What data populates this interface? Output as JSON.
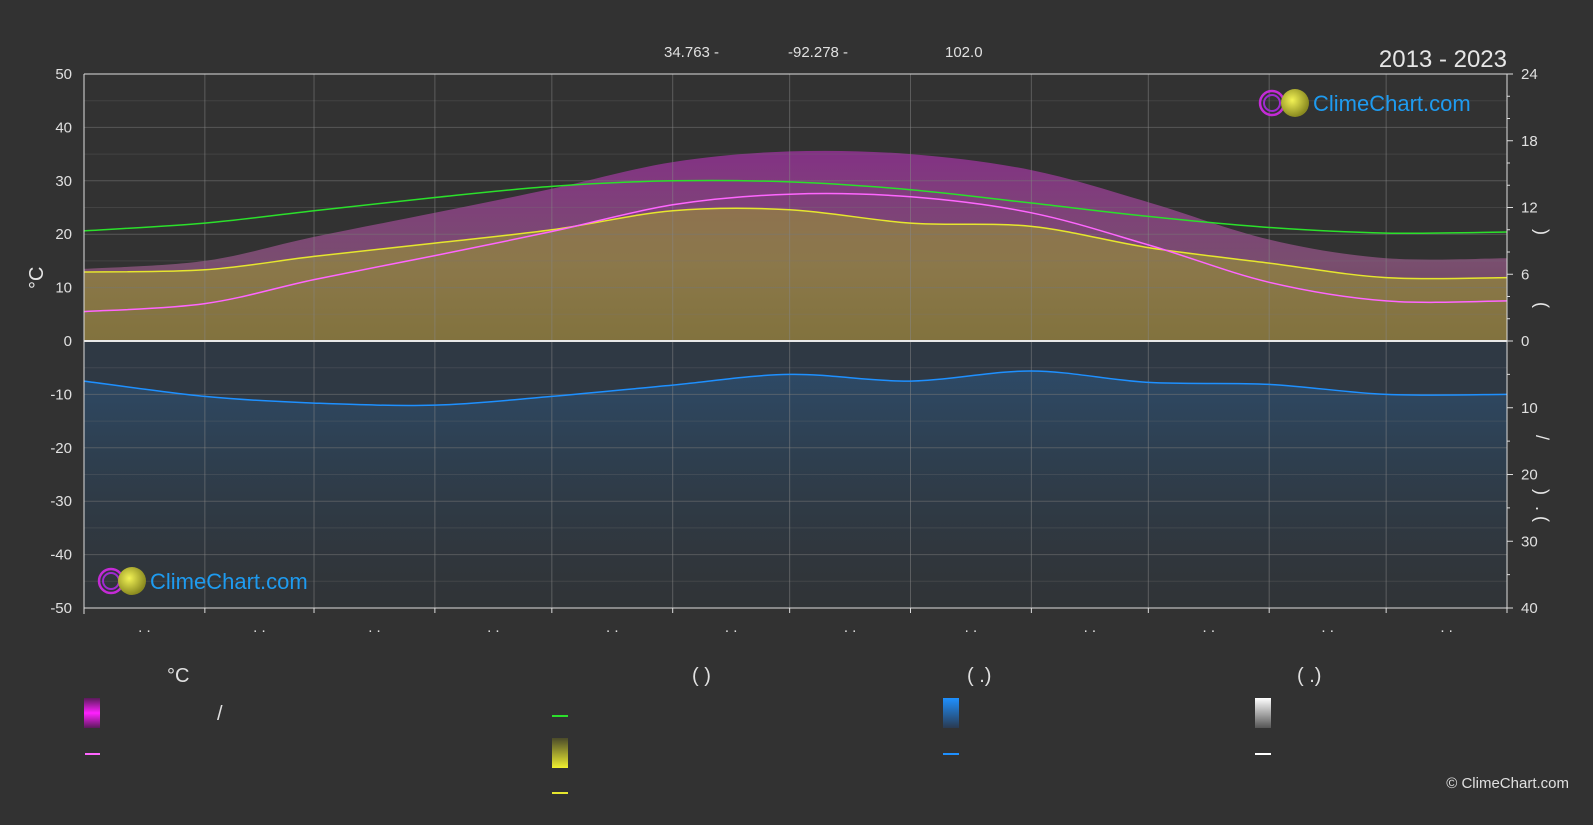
{
  "header": {
    "latitude": "34.763 -",
    "longitude": "-92.278 -",
    "elevation": "102.0",
    "period": "2013 - 2023"
  },
  "brand": {
    "name": "ClimeChart.com",
    "copyright": "© ClimeChart.com"
  },
  "colors": {
    "background": "#323232",
    "daylight": "#2be02b",
    "sunshine": "#e6e62e",
    "temp_mean": "#ff66ff",
    "precip": "#1e90ff",
    "brand_blue": "#1e9bf0",
    "temp_band": "#c530c8"
  },
  "legend": {
    "col1_title": "°C",
    "col1_separator": "/",
    "col2_title": "(            )",
    "col3_title": "(   .)",
    "col4_title": "(   .)"
  },
  "chart_data": {
    "type": "area",
    "left_axis": {
      "label": "°C",
      "ticks": [
        50,
        40,
        30,
        20,
        10,
        0,
        -10,
        -20,
        -30,
        -40,
        -50
      ],
      "range": [
        -50,
        50
      ]
    },
    "right_axis_top": {
      "ticks": [
        24,
        18,
        12,
        6,
        0
      ],
      "range": [
        0,
        24
      ],
      "label_glyphs": [
        ")",
        "("
      ]
    },
    "right_axis_bottom": {
      "ticks": [
        0,
        10,
        20,
        30,
        40
      ],
      "range": [
        0,
        40
      ],
      "label_glyphs": [
        "/",
        ")",
        "(",
        "."
      ]
    },
    "month_tick_labels": [
      ". .",
      ". .",
      ". .",
      ". .",
      ". .",
      ". .",
      ". .",
      ". .",
      ". .",
      ". .",
      ". .",
      ". ."
    ],
    "month_days": [
      0,
      31,
      59,
      90,
      120,
      151,
      181,
      212,
      243,
      273,
      304,
      334,
      365
    ],
    "grid": true,
    "series": [
      {
        "key": "daylight",
        "unit": "hours",
        "x": [
          0,
          31,
          59,
          90,
          120,
          151,
          181,
          212,
          243,
          273,
          304,
          334,
          365
        ],
        "values": [
          9.9,
          10.6,
          11.7,
          12.9,
          13.9,
          14.4,
          14.3,
          13.6,
          12.4,
          11.2,
          10.2,
          9.7,
          9.8
        ]
      },
      {
        "key": "sunshine",
        "unit": "hours",
        "x": [
          0,
          31,
          59,
          90,
          120,
          151,
          181,
          212,
          243,
          273,
          304,
          334,
          365
        ],
        "values": [
          6.2,
          6.4,
          7.6,
          8.8,
          10.0,
          11.7,
          11.8,
          10.6,
          10.3,
          8.4,
          7.0,
          5.7,
          5.7
        ]
      },
      {
        "key": "temp_mean",
        "unit": "°C",
        "x": [
          0,
          31,
          59,
          90,
          120,
          151,
          181,
          212,
          243,
          273,
          304,
          334,
          365
        ],
        "values": [
          5.5,
          7.0,
          11.5,
          16.0,
          20.5,
          25.5,
          27.5,
          27.0,
          24.0,
          18.0,
          11.0,
          7.5,
          7.5
        ]
      },
      {
        "key": "precip",
        "unit": "mm",
        "x": [
          0,
          31,
          59,
          90,
          120,
          151,
          181,
          212,
          243,
          273,
          304,
          334,
          365
        ],
        "values": [
          6.0,
          8.3,
          9.3,
          9.6,
          8.3,
          6.6,
          5.0,
          6.0,
          4.5,
          6.2,
          6.5,
          8.0,
          8.0
        ]
      }
    ]
  }
}
